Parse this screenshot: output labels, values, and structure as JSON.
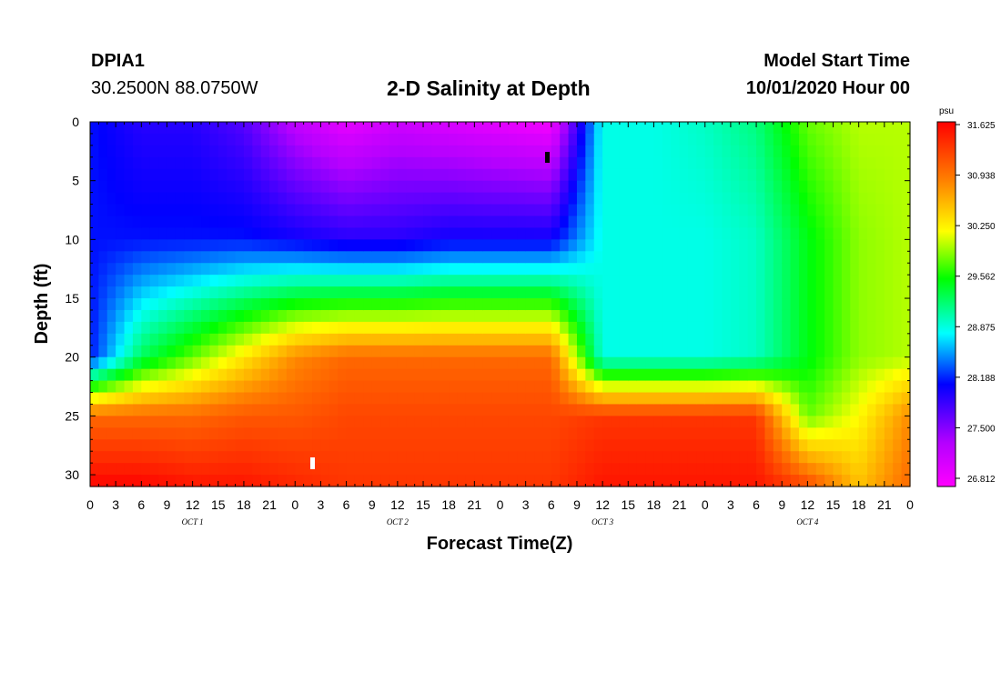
{
  "header": {
    "station_id": "DPIA1",
    "coordinates": "30.2500N 88.0750W",
    "start_label": "Model Start Time",
    "start_value": "10/01/2020 Hour 00"
  },
  "chart_data": {
    "type": "heatmap",
    "title": "2-D Salinity at Depth",
    "xlabel": "Forecast Time(Z)",
    "ylabel": "Depth (ft)",
    "x_tick_labels": [
      "0",
      "3",
      "6",
      "9",
      "12",
      "15",
      "18",
      "21",
      "0",
      "3",
      "6",
      "9",
      "12",
      "15",
      "18",
      "21",
      "0",
      "3",
      "6",
      "9",
      "12",
      "15",
      "18",
      "21",
      "0",
      "3",
      "6",
      "9",
      "12",
      "15",
      "18",
      "21",
      "0"
    ],
    "day_labels": [
      "OCT 1",
      "OCT 2",
      "OCT 3",
      "OCT 4"
    ],
    "xlim_hours": [
      0,
      96
    ],
    "y_ticks": [
      0,
      5,
      10,
      15,
      20,
      25,
      30
    ],
    "ylim_ft": [
      0,
      31
    ],
    "colorbar": {
      "unit": "psu",
      "tick_labels": [
        "31.625",
        "30.938",
        "30.250",
        "29.562",
        "28.875",
        "28.188",
        "27.500",
        "26.812"
      ],
      "range": [
        26.812,
        31.625
      ]
    },
    "salinity_profile_psu": {
      "hours": [
        0,
        6,
        12,
        18,
        24,
        30,
        36,
        42,
        48,
        54,
        60,
        66,
        72,
        78,
        84,
        90,
        96
      ],
      "surface": [
        28.2,
        28.0,
        28.0,
        27.8,
        27.3,
        27.0,
        27.2,
        27.1,
        27.0,
        26.9,
        28.9,
        28.9,
        29.0,
        29.2,
        29.8,
        30.0,
        30.0
      ],
      "depth_10ft": [
        28.2,
        28.2,
        28.2,
        28.2,
        28.1,
        28.0,
        28.0,
        28.1,
        28.1,
        28.1,
        28.9,
        28.9,
        28.9,
        29.0,
        29.5,
        29.9,
        30.0
      ],
      "depth_20ft": [
        28.2,
        29.3,
        29.8,
        30.3,
        30.8,
        31.0,
        31.0,
        31.0,
        31.0,
        31.0,
        28.9,
        28.9,
        28.9,
        29.0,
        29.5,
        29.9,
        30.0
      ],
      "depth_25ft": [
        31.0,
        31.0,
        31.0,
        31.1,
        31.1,
        31.2,
        31.2,
        31.2,
        31.2,
        31.2,
        31.3,
        31.3,
        31.3,
        31.3,
        29.8,
        30.2,
        30.8
      ],
      "depth_30ft": [
        31.6,
        31.6,
        31.5,
        31.5,
        31.4,
        31.3,
        31.3,
        31.3,
        31.3,
        31.3,
        31.5,
        31.5,
        31.5,
        31.5,
        31.2,
        30.5,
        31.0
      ]
    }
  }
}
